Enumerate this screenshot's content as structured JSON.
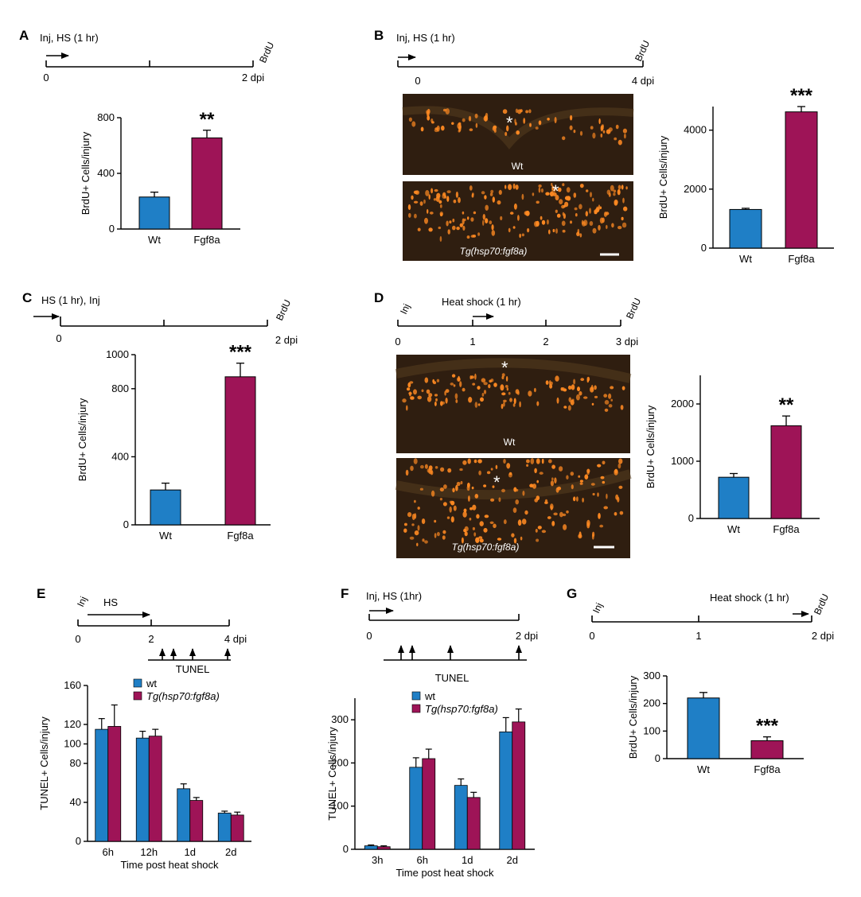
{
  "colors": {
    "wt": "#1f7fc6",
    "fgf8a": "#9e1457",
    "micro_bg": "#2f1e10",
    "cells": "#ff8a22"
  },
  "panels": {
    "A": {
      "letter": "A",
      "tl_top": "Inj, HS (1 hr)",
      "tl_right": "BrdU",
      "ticks": [
        "0",
        "2 dpi"
      ]
    },
    "B": {
      "letter": "B",
      "tl_top": "Inj, HS (1 hr)",
      "tl_right": "BrdU",
      "ticks": [
        "0",
        "4 dpi"
      ],
      "img_top": "Wt",
      "img_bottom": "Tg(hsp70:fgf8a)",
      "star": "*"
    },
    "C": {
      "letter": "C",
      "tl_top": "HS (1 hr), Inj",
      "tl_right": "BrdU",
      "ticks": [
        "0",
        "2 dpi"
      ]
    },
    "D": {
      "letter": "D",
      "tl_left": "Inj",
      "tl_top": "Heat shock (1 hr)",
      "tl_right": "BrdU",
      "ticks": [
        "0",
        "1",
        "2",
        "3 dpi"
      ],
      "img_top": "Wt",
      "img_bottom": "Tg(hsp70:fgf8a)",
      "star": "*"
    },
    "E": {
      "letter": "E",
      "tl_left": "Inj",
      "tl_top": "HS",
      "ticks": [
        "0",
        "2",
        "4 dpi"
      ],
      "tunel": "TUNEL"
    },
    "F": {
      "letter": "F",
      "tl_top": "Inj, HS (1hr)",
      "ticks": [
        "0",
        "2 dpi"
      ],
      "tunel": "TUNEL"
    },
    "G": {
      "letter": "G",
      "tl_left": "Inj",
      "tl_top": "Heat shock (1 hr)",
      "tl_right": "BrdU",
      "ticks": [
        "0",
        "1",
        "2 dpi"
      ]
    }
  },
  "chart_data": [
    {
      "id": "A",
      "type": "bar",
      "categories": [
        "Wt",
        "Fgf8a"
      ],
      "values": [
        230,
        655
      ],
      "errors": [
        35,
        55
      ],
      "ylabel": "BrdU+ Cells/injury",
      "ylim": [
        0,
        800
      ],
      "yticks": [
        0,
        400,
        800
      ],
      "significance": [
        "",
        "**"
      ]
    },
    {
      "id": "B",
      "type": "bar",
      "categories": [
        "Wt",
        "Fgf8a"
      ],
      "values": [
        1310,
        4620
      ],
      "errors": [
        40,
        180
      ],
      "ylabel": "BrdU+ Cells/injury",
      "ylim": [
        0,
        4800
      ],
      "yticks": [
        0,
        2000,
        4000
      ],
      "significance": [
        "",
        "***"
      ]
    },
    {
      "id": "C",
      "type": "bar",
      "categories": [
        "Wt",
        "Fgf8a"
      ],
      "values": [
        205,
        870
      ],
      "errors": [
        40,
        80
      ],
      "ylabel": "BrdU+ Cells/injury",
      "ylim": [
        0,
        1000
      ],
      "yticks": [
        0,
        400,
        800,
        1000
      ],
      "significance": [
        "",
        "***"
      ]
    },
    {
      "id": "D",
      "type": "bar",
      "categories": [
        "Wt",
        "Fgf8a"
      ],
      "values": [
        720,
        1620
      ],
      "errors": [
        65,
        170
      ],
      "ylabel": "BrdU+ Cells/injury",
      "ylim": [
        0,
        2500
      ],
      "yticks": [
        0,
        1000,
        2000
      ],
      "significance": [
        "",
        "**"
      ]
    },
    {
      "id": "E",
      "type": "bar",
      "categories": [
        "6h",
        "12h",
        "1d",
        "2d"
      ],
      "series": [
        {
          "name": "wt",
          "values": [
            115,
            106,
            54,
            29
          ],
          "errors": [
            11,
            7,
            5,
            2
          ]
        },
        {
          "name": "Tg(hsp70:fgf8a)",
          "values": [
            118,
            108,
            42,
            27
          ],
          "errors": [
            22,
            7,
            3,
            3
          ]
        }
      ],
      "xlabel": "Time post heat shock",
      "ylabel": "TUNEL+ Cells/injury",
      "ylim": [
        0,
        160
      ],
      "yticks": [
        0,
        40,
        80,
        100,
        120,
        160
      ],
      "legend": "top-right"
    },
    {
      "id": "F",
      "type": "bar",
      "categories": [
        "3h",
        "6h",
        "1d",
        "2d"
      ],
      "series": [
        {
          "name": "wt",
          "values": [
            8,
            190,
            148,
            272
          ],
          "errors": [
            2,
            22,
            15,
            33
          ]
        },
        {
          "name": "Tg(hsp70:fgf8a)",
          "values": [
            6,
            210,
            120,
            295
          ],
          "errors": [
            2,
            22,
            12,
            30
          ]
        }
      ],
      "xlabel": "Time post heat shock",
      "ylabel": "TUNEL+ Cells/injury",
      "ylim": [
        0,
        350
      ],
      "yticks": [
        0,
        100,
        200,
        300
      ],
      "legend": "top-left"
    },
    {
      "id": "G",
      "type": "bar",
      "categories": [
        "Wt",
        "Fgf8a"
      ],
      "values": [
        220,
        65
      ],
      "errors": [
        20,
        14
      ],
      "ylabel": "BrdU+ Cells/injury",
      "ylim": [
        0,
        300
      ],
      "yticks": [
        0,
        100,
        200,
        300
      ],
      "significance": [
        "",
        "***"
      ]
    }
  ]
}
